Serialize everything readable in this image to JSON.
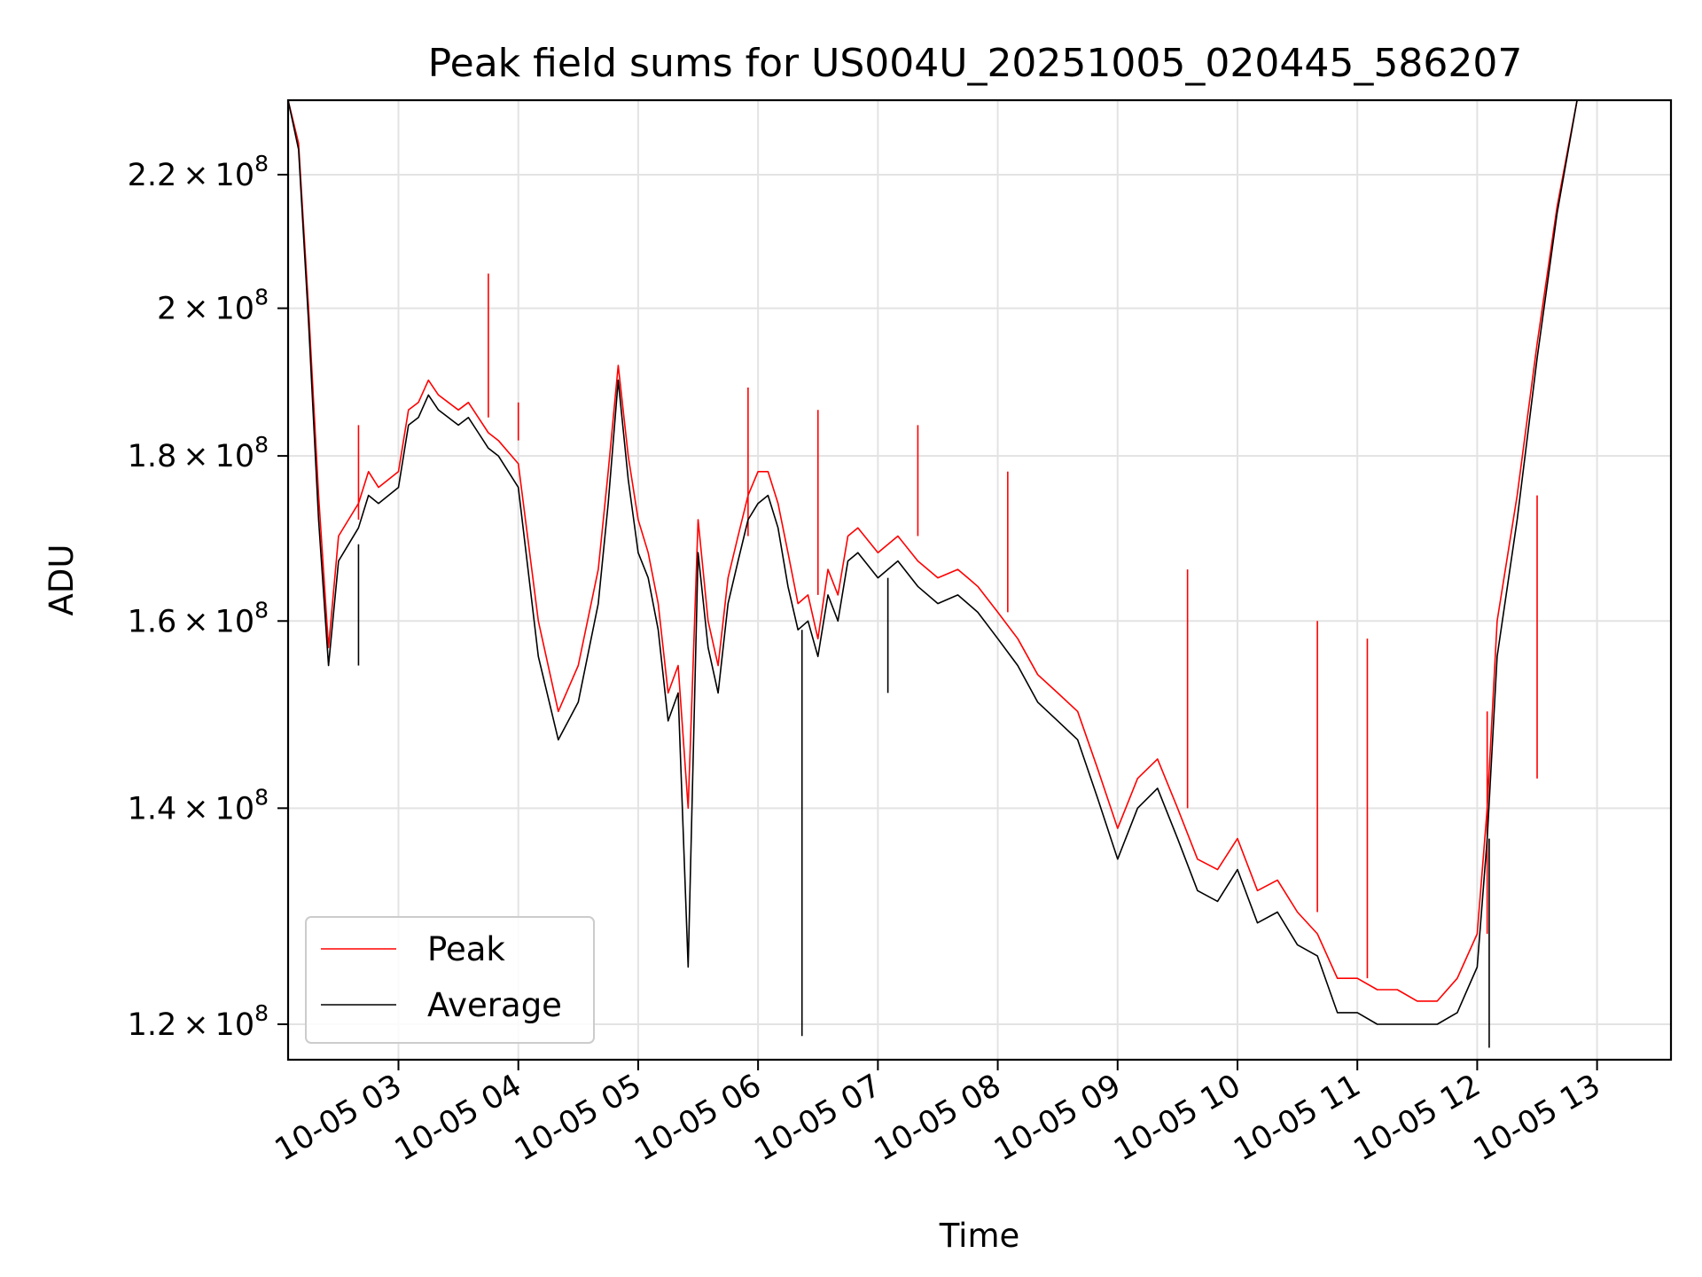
{
  "chart_data": {
    "type": "line",
    "title": "Peak field sums for US004U_20251005_020445_586207",
    "xlabel": "Time",
    "ylabel": "ADU",
    "y_scale": "log",
    "grid": true,
    "legend_position": "lower-left",
    "xlim": [
      "2025-10-05 02:04:45",
      "2025-10-05 13:37:00"
    ],
    "ylim": [
      117000000,
      232000000
    ],
    "x_ticks": [
      {
        "value": "2025-10-05 03:00",
        "label": "10-05 03"
      },
      {
        "value": "2025-10-05 04:00",
        "label": "10-05 04"
      },
      {
        "value": "2025-10-05 05:00",
        "label": "10-05 05"
      },
      {
        "value": "2025-10-05 06:00",
        "label": "10-05 06"
      },
      {
        "value": "2025-10-05 07:00",
        "label": "10-05 07"
      },
      {
        "value": "2025-10-05 08:00",
        "label": "10-05 08"
      },
      {
        "value": "2025-10-05 09:00",
        "label": "10-05 09"
      },
      {
        "value": "2025-10-05 10:00",
        "label": "10-05 10"
      },
      {
        "value": "2025-10-05 11:00",
        "label": "10-05 11"
      },
      {
        "value": "2025-10-05 12:00",
        "label": "10-05 12"
      },
      {
        "value": "2025-10-05 13:00",
        "label": "10-05 13"
      }
    ],
    "y_ticks": [
      {
        "value": 120000000,
        "mantissa": "1.2",
        "exponent": "8"
      },
      {
        "value": 140000000,
        "mantissa": "1.4",
        "exponent": "8"
      },
      {
        "value": 160000000,
        "mantissa": "1.6",
        "exponent": "8"
      },
      {
        "value": 180000000,
        "mantissa": "1.8",
        "exponent": "8"
      },
      {
        "value": 200000000,
        "mantissa": "2",
        "exponent": "8"
      },
      {
        "value": 220000000,
        "mantissa": "2.2",
        "exponent": "8"
      }
    ],
    "times_multiply_symbol": "×",
    "tick_base": "10",
    "series": [
      {
        "name": "Peak",
        "color": "#ff0000",
        "x": [
          "2025-10-05 02:04:45",
          "2025-10-05 02:10",
          "2025-10-05 02:15",
          "2025-10-05 02:20",
          "2025-10-05 02:25",
          "2025-10-05 02:30",
          "2025-10-05 02:35",
          "2025-10-05 02:40",
          "2025-10-05 02:45",
          "2025-10-05 02:50",
          "2025-10-05 03:00",
          "2025-10-05 03:05",
          "2025-10-05 03:10",
          "2025-10-05 03:15",
          "2025-10-05 03:20",
          "2025-10-05 03:25",
          "2025-10-05 03:30",
          "2025-10-05 03:35",
          "2025-10-05 03:40",
          "2025-10-05 03:45",
          "2025-10-05 03:50",
          "2025-10-05 04:00",
          "2025-10-05 04:10",
          "2025-10-05 04:20",
          "2025-10-05 04:30",
          "2025-10-05 04:40",
          "2025-10-05 04:45",
          "2025-10-05 04:50",
          "2025-10-05 04:55",
          "2025-10-05 05:00",
          "2025-10-05 05:05",
          "2025-10-05 05:10",
          "2025-10-05 05:15",
          "2025-10-05 05:20",
          "2025-10-05 05:25",
          "2025-10-05 05:30",
          "2025-10-05 05:35",
          "2025-10-05 05:40",
          "2025-10-05 05:45",
          "2025-10-05 05:50",
          "2025-10-05 05:55",
          "2025-10-05 06:00",
          "2025-10-05 06:05",
          "2025-10-05 06:10",
          "2025-10-05 06:15",
          "2025-10-05 06:20",
          "2025-10-05 06:25",
          "2025-10-05 06:30",
          "2025-10-05 06:35",
          "2025-10-05 06:40",
          "2025-10-05 06:45",
          "2025-10-05 06:50",
          "2025-10-05 07:00",
          "2025-10-05 07:10",
          "2025-10-05 07:20",
          "2025-10-05 07:30",
          "2025-10-05 07:40",
          "2025-10-05 07:45",
          "2025-10-05 07:50",
          "2025-10-05 08:00",
          "2025-10-05 08:10",
          "2025-10-05 08:20",
          "2025-10-05 08:30",
          "2025-10-05 08:40",
          "2025-10-05 08:50",
          "2025-10-05 09:00",
          "2025-10-05 09:10",
          "2025-10-05 09:20",
          "2025-10-05 09:30",
          "2025-10-05 09:40",
          "2025-10-05 09:50",
          "2025-10-05 10:00",
          "2025-10-05 10:10",
          "2025-10-05 10:20",
          "2025-10-05 10:30",
          "2025-10-05 10:40",
          "2025-10-05 10:50",
          "2025-10-05 11:00",
          "2025-10-05 11:10",
          "2025-10-05 11:20",
          "2025-10-05 11:30",
          "2025-10-05 11:40",
          "2025-10-05 11:50",
          "2025-10-05 12:00",
          "2025-10-05 12:05",
          "2025-10-05 12:10",
          "2025-10-05 12:20",
          "2025-10-05 12:30",
          "2025-10-05 12:40",
          "2025-10-05 12:50",
          "2025-10-05 13:00",
          "2025-10-05 13:05",
          "2025-10-05 13:10",
          "2025-10-05 13:15",
          "2025-10-05 13:20",
          "2025-10-05 13:25",
          "2025-10-05 13:30",
          "2025-10-05 13:35"
        ],
        "values": [
          232000000,
          225000000,
          200000000,
          175000000,
          157000000,
          170000000,
          172000000,
          174000000,
          178000000,
          176000000,
          178000000,
          186000000,
          187000000,
          190000000,
          188000000,
          187000000,
          186000000,
          187000000,
          185000000,
          183000000,
          182000000,
          179000000,
          160000000,
          150000000,
          155000000,
          166000000,
          178000000,
          192000000,
          180000000,
          172000000,
          168000000,
          162000000,
          152000000,
          155000000,
          140000000,
          172000000,
          160000000,
          155000000,
          165000000,
          170000000,
          175000000,
          178000000,
          178000000,
          174000000,
          168000000,
          162000000,
          163000000,
          158000000,
          166000000,
          163000000,
          170000000,
          171000000,
          168000000,
          170000000,
          167000000,
          165000000,
          166000000,
          165000000,
          164000000,
          161000000,
          158000000,
          154000000,
          152000000,
          150000000,
          144000000,
          138000000,
          143000000,
          145000000,
          140000000,
          135000000,
          134000000,
          137000000,
          132000000,
          133000000,
          130000000,
          128000000,
          124000000,
          124000000,
          123000000,
          123000000,
          122000000,
          122000000,
          124000000,
          128000000,
          140000000,
          160000000,
          175000000,
          195000000,
          215000000,
          232000000,
          232000000,
          232000000,
          232000000,
          232000000,
          232000000,
          232000000,
          232000000,
          232000000
        ],
        "spikes": [
          {
            "x": "2025-10-05 02:40",
            "value": 184000000
          },
          {
            "x": "2025-10-05 03:45",
            "value": 205000000
          },
          {
            "x": "2025-10-05 04:00",
            "value": 187000000
          },
          {
            "x": "2025-10-05 05:55",
            "value": 189000000
          },
          {
            "x": "2025-10-05 06:30",
            "value": 186000000
          },
          {
            "x": "2025-10-05 07:20",
            "value": 184000000
          },
          {
            "x": "2025-10-05 08:05",
            "value": 178000000
          },
          {
            "x": "2025-10-05 09:35",
            "value": 166000000
          },
          {
            "x": "2025-10-05 10:40",
            "value": 160000000
          },
          {
            "x": "2025-10-05 11:05",
            "value": 158000000
          },
          {
            "x": "2025-10-05 12:05",
            "value": 150000000
          },
          {
            "x": "2025-10-05 12:30",
            "value": 143000000
          }
        ]
      },
      {
        "name": "Average",
        "color": "#000000",
        "x": [
          "2025-10-05 02:04:45",
          "2025-10-05 02:10",
          "2025-10-05 02:15",
          "2025-10-05 02:20",
          "2025-10-05 02:25",
          "2025-10-05 02:30",
          "2025-10-05 02:35",
          "2025-10-05 02:40",
          "2025-10-05 02:45",
          "2025-10-05 02:50",
          "2025-10-05 03:00",
          "2025-10-05 03:05",
          "2025-10-05 03:10",
          "2025-10-05 03:15",
          "2025-10-05 03:20",
          "2025-10-05 03:25",
          "2025-10-05 03:30",
          "2025-10-05 03:35",
          "2025-10-05 03:40",
          "2025-10-05 03:45",
          "2025-10-05 03:50",
          "2025-10-05 04:00",
          "2025-10-05 04:10",
          "2025-10-05 04:20",
          "2025-10-05 04:30",
          "2025-10-05 04:40",
          "2025-10-05 04:45",
          "2025-10-05 04:50",
          "2025-10-05 04:55",
          "2025-10-05 05:00",
          "2025-10-05 05:05",
          "2025-10-05 05:10",
          "2025-10-05 05:15",
          "2025-10-05 05:20",
          "2025-10-05 05:25",
          "2025-10-05 05:30",
          "2025-10-05 05:35",
          "2025-10-05 05:40",
          "2025-10-05 05:45",
          "2025-10-05 05:50",
          "2025-10-05 05:55",
          "2025-10-05 06:00",
          "2025-10-05 06:05",
          "2025-10-05 06:10",
          "2025-10-05 06:15",
          "2025-10-05 06:20",
          "2025-10-05 06:25",
          "2025-10-05 06:30",
          "2025-10-05 06:35",
          "2025-10-05 06:40",
          "2025-10-05 06:45",
          "2025-10-05 06:50",
          "2025-10-05 07:00",
          "2025-10-05 07:10",
          "2025-10-05 07:20",
          "2025-10-05 07:30",
          "2025-10-05 07:40",
          "2025-10-05 07:45",
          "2025-10-05 07:50",
          "2025-10-05 08:00",
          "2025-10-05 08:10",
          "2025-10-05 08:20",
          "2025-10-05 08:30",
          "2025-10-05 08:40",
          "2025-10-05 08:50",
          "2025-10-05 09:00",
          "2025-10-05 09:10",
          "2025-10-05 09:20",
          "2025-10-05 09:30",
          "2025-10-05 09:40",
          "2025-10-05 09:50",
          "2025-10-05 10:00",
          "2025-10-05 10:10",
          "2025-10-05 10:20",
          "2025-10-05 10:30",
          "2025-10-05 10:40",
          "2025-10-05 10:50",
          "2025-10-05 11:00",
          "2025-10-05 11:10",
          "2025-10-05 11:20",
          "2025-10-05 11:30",
          "2025-10-05 11:40",
          "2025-10-05 11:50",
          "2025-10-05 12:00",
          "2025-10-05 12:05",
          "2025-10-05 12:10",
          "2025-10-05 12:20",
          "2025-10-05 12:30",
          "2025-10-05 12:40",
          "2025-10-05 12:50",
          "2025-10-05 13:00",
          "2025-10-05 13:05",
          "2025-10-05 13:10",
          "2025-10-05 13:15",
          "2025-10-05 13:20",
          "2025-10-05 13:25",
          "2025-10-05 13:30",
          "2025-10-05 13:35"
        ],
        "values": [
          232000000,
          224000000,
          198000000,
          172000000,
          155000000,
          167000000,
          169000000,
          171000000,
          175000000,
          174000000,
          176000000,
          184000000,
          185000000,
          188000000,
          186000000,
          185000000,
          184000000,
          185000000,
          183000000,
          181000000,
          180000000,
          176000000,
          156000000,
          147000000,
          151000000,
          162000000,
          174000000,
          190000000,
          177000000,
          168000000,
          165000000,
          159000000,
          149000000,
          152000000,
          125000000,
          168000000,
          157000000,
          152000000,
          162000000,
          167000000,
          172000000,
          174000000,
          175000000,
          171000000,
          164000000,
          159000000,
          160000000,
          156000000,
          163000000,
          160000000,
          167000000,
          168000000,
          165000000,
          167000000,
          164000000,
          162000000,
          163000000,
          162000000,
          161000000,
          158000000,
          155000000,
          151000000,
          149000000,
          147000000,
          141000000,
          135000000,
          140000000,
          142000000,
          137000000,
          132000000,
          131000000,
          134000000,
          129000000,
          130000000,
          127000000,
          126000000,
          121000000,
          121000000,
          120000000,
          120000000,
          120000000,
          120000000,
          121000000,
          125000000,
          137000000,
          156000000,
          172000000,
          193000000,
          214000000,
          232000000,
          232000000,
          232000000,
          232000000,
          232000000,
          232000000,
          232000000,
          232000000,
          232000000
        ],
        "spikes": [
          {
            "x": "2025-10-05 02:40",
            "value": 155000000
          },
          {
            "x": "2025-10-05 06:22",
            "value": 119000000
          },
          {
            "x": "2025-10-05 07:05",
            "value": 152000000
          },
          {
            "x": "2025-10-05 12:06",
            "value": 118000000
          }
        ]
      }
    ]
  }
}
